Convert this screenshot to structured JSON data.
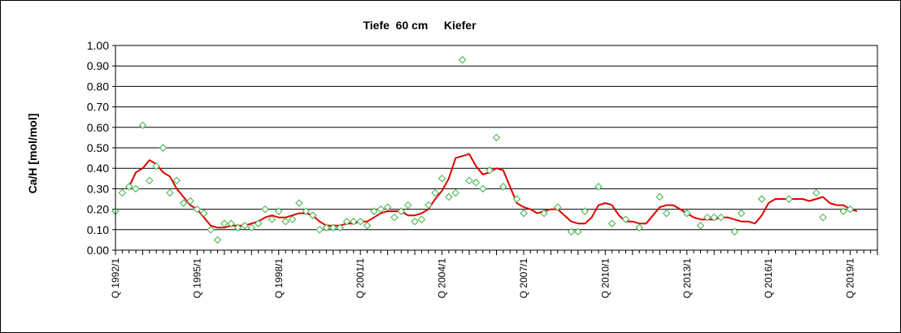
{
  "chart_data": {
    "type": "line",
    "title": "Tiefe  60 cm     Kiefer",
    "ylabel": "Ca/H [mol/mol]",
    "xlabel": "",
    "ylim": [
      0,
      1
    ],
    "yticks": [
      "0.00",
      "0.10",
      "0.20",
      "0.30",
      "0.40",
      "0.50",
      "0.60",
      "0.70",
      "0.80",
      "0.90",
      "1.00"
    ],
    "xlim": [
      1992.0,
      2020.0
    ],
    "xticks": [
      {
        "x": 1992.0,
        "label": "Q 1992/1"
      },
      {
        "x": 1995.0,
        "label": "Q 1995/1"
      },
      {
        "x": 1998.0,
        "label": "Q 1998/1"
      },
      {
        "x": 2001.0,
        "label": "Q 2001/1"
      },
      {
        "x": 2004.0,
        "label": "Q 2004/1"
      },
      {
        "x": 2007.0,
        "label": "Q 2007/1"
      },
      {
        "x": 2010.0,
        "label": "Q 2010/1"
      },
      {
        "x": 2013.0,
        "label": "Q 2013/1"
      },
      {
        "x": 2016.0,
        "label": "Q 2016/1"
      },
      {
        "x": 2019.0,
        "label": "Q 2019/1"
      }
    ],
    "grid": "horizontal",
    "series": [
      {
        "kind": "scatter",
        "marker": "diamond",
        "color": "#3cb043",
        "points": [
          [
            1992.0,
            0.19
          ],
          [
            1992.25,
            0.28
          ],
          [
            1992.5,
            0.31
          ],
          [
            1992.75,
            0.3
          ],
          [
            1993.0,
            0.61
          ],
          [
            1993.25,
            0.34
          ],
          [
            1993.5,
            0.41
          ],
          [
            1993.75,
            0.5
          ],
          [
            1994.0,
            0.28
          ],
          [
            1994.25,
            0.34
          ],
          [
            1994.5,
            0.23
          ],
          [
            1994.75,
            0.24
          ],
          [
            1995.0,
            0.2
          ],
          [
            1995.25,
            0.18
          ],
          [
            1995.5,
            0.1
          ],
          [
            1995.75,
            0.05
          ],
          [
            1996.0,
            0.13
          ],
          [
            1996.25,
            0.13
          ],
          [
            1996.5,
            0.11
          ],
          [
            1996.75,
            0.12
          ],
          [
            1997.0,
            0.11
          ],
          [
            1997.25,
            0.13
          ],
          [
            1997.5,
            0.2
          ],
          [
            1997.75,
            0.15
          ],
          [
            1998.0,
            0.19
          ],
          [
            1998.25,
            0.14
          ],
          [
            1998.5,
            0.15
          ],
          [
            1998.75,
            0.23
          ],
          [
            1999.0,
            0.19
          ],
          [
            1999.25,
            0.17
          ],
          [
            1999.5,
            0.1
          ],
          [
            1999.75,
            0.11
          ],
          [
            2000.0,
            0.11
          ],
          [
            2000.25,
            0.11
          ],
          [
            2000.5,
            0.14
          ],
          [
            2000.75,
            0.14
          ],
          [
            2001.0,
            0.14
          ],
          [
            2001.25,
            0.12
          ],
          [
            2001.5,
            0.19
          ],
          [
            2001.75,
            0.2
          ],
          [
            2002.0,
            0.21
          ],
          [
            2002.25,
            0.16
          ],
          [
            2002.5,
            0.19
          ],
          [
            2002.75,
            0.22
          ],
          [
            2003.0,
            0.14
          ],
          [
            2003.25,
            0.15
          ],
          [
            2003.5,
            0.22
          ],
          [
            2003.75,
            0.28
          ],
          [
            2004.0,
            0.35
          ],
          [
            2004.25,
            0.26
          ],
          [
            2004.5,
            0.28
          ],
          [
            2004.75,
            0.93
          ],
          [
            2005.0,
            0.34
          ],
          [
            2005.25,
            0.33
          ],
          [
            2005.5,
            0.3
          ],
          [
            2005.75,
            0.39
          ],
          [
            2006.0,
            0.55
          ],
          [
            2006.25,
            0.31
          ],
          [
            2006.75,
            0.25
          ],
          [
            2007.0,
            0.18
          ],
          [
            2007.75,
            0.18
          ],
          [
            2008.25,
            0.21
          ],
          [
            2008.75,
            0.09
          ],
          [
            2009.0,
            0.09
          ],
          [
            2009.25,
            0.19
          ],
          [
            2009.75,
            0.31
          ],
          [
            2010.25,
            0.13
          ],
          [
            2010.75,
            0.15
          ],
          [
            2011.25,
            0.11
          ],
          [
            2012.0,
            0.26
          ],
          [
            2012.25,
            0.18
          ],
          [
            2013.0,
            0.18
          ],
          [
            2013.5,
            0.12
          ],
          [
            2013.75,
            0.16
          ],
          [
            2014.0,
            0.16
          ],
          [
            2014.25,
            0.16
          ],
          [
            2014.75,
            0.09
          ],
          [
            2015.0,
            0.18
          ],
          [
            2015.75,
            0.25
          ],
          [
            2016.75,
            0.25
          ],
          [
            2017.75,
            0.28
          ],
          [
            2018.0,
            0.16
          ],
          [
            2018.75,
            0.19
          ],
          [
            2019.0,
            0.2
          ]
        ]
      },
      {
        "kind": "line",
        "color": "#e00000",
        "points": [
          [
            1992.5,
            0.31
          ],
          [
            1992.75,
            0.38
          ],
          [
            1993.0,
            0.4
          ],
          [
            1993.25,
            0.44
          ],
          [
            1993.5,
            0.42
          ],
          [
            1993.75,
            0.38
          ],
          [
            1994.0,
            0.36
          ],
          [
            1994.25,
            0.3
          ],
          [
            1994.5,
            0.26
          ],
          [
            1994.75,
            0.22
          ],
          [
            1995.0,
            0.2
          ],
          [
            1995.25,
            0.16
          ],
          [
            1995.5,
            0.12
          ],
          [
            1995.75,
            0.11
          ],
          [
            1996.0,
            0.11
          ],
          [
            1996.25,
            0.12
          ],
          [
            1996.5,
            0.12
          ],
          [
            1996.75,
            0.12
          ],
          [
            1997.0,
            0.13
          ],
          [
            1997.25,
            0.14
          ],
          [
            1997.5,
            0.16
          ],
          [
            1997.75,
            0.17
          ],
          [
            1998.0,
            0.16
          ],
          [
            1998.25,
            0.16
          ],
          [
            1998.5,
            0.17
          ],
          [
            1998.75,
            0.18
          ],
          [
            1999.0,
            0.18
          ],
          [
            1999.25,
            0.17
          ],
          [
            1999.5,
            0.14
          ],
          [
            1999.75,
            0.12
          ],
          [
            2000.0,
            0.12
          ],
          [
            2000.25,
            0.12
          ],
          [
            2000.5,
            0.13
          ],
          [
            2000.75,
            0.13
          ],
          [
            2001.0,
            0.14
          ],
          [
            2001.25,
            0.14
          ],
          [
            2001.5,
            0.16
          ],
          [
            2001.75,
            0.18
          ],
          [
            2002.0,
            0.19
          ],
          [
            2002.25,
            0.19
          ],
          [
            2002.5,
            0.19
          ],
          [
            2002.75,
            0.17
          ],
          [
            2003.0,
            0.17
          ],
          [
            2003.25,
            0.18
          ],
          [
            2003.5,
            0.2
          ],
          [
            2003.75,
            0.25
          ],
          [
            2004.0,
            0.29
          ],
          [
            2004.25,
            0.35
          ],
          [
            2004.5,
            0.45
          ],
          [
            2004.75,
            0.46
          ],
          [
            2005.0,
            0.47
          ],
          [
            2005.25,
            0.41
          ],
          [
            2005.5,
            0.37
          ],
          [
            2005.75,
            0.38
          ],
          [
            2006.0,
            0.4
          ],
          [
            2006.25,
            0.39
          ],
          [
            2006.5,
            0.31
          ],
          [
            2006.75,
            0.23
          ],
          [
            2007.0,
            0.21
          ],
          [
            2007.25,
            0.2
          ],
          [
            2007.5,
            0.18
          ],
          [
            2007.75,
            0.19
          ],
          [
            2008.0,
            0.2
          ],
          [
            2008.25,
            0.2
          ],
          [
            2008.5,
            0.17
          ],
          [
            2008.75,
            0.14
          ],
          [
            2009.0,
            0.13
          ],
          [
            2009.25,
            0.13
          ],
          [
            2009.5,
            0.16
          ],
          [
            2009.75,
            0.22
          ],
          [
            2010.0,
            0.23
          ],
          [
            2010.25,
            0.22
          ],
          [
            2010.5,
            0.17
          ],
          [
            2010.75,
            0.14
          ],
          [
            2011.0,
            0.14
          ],
          [
            2011.25,
            0.13
          ],
          [
            2011.5,
            0.13
          ],
          [
            2011.75,
            0.17
          ],
          [
            2012.0,
            0.21
          ],
          [
            2012.25,
            0.22
          ],
          [
            2012.5,
            0.22
          ],
          [
            2012.75,
            0.2
          ],
          [
            2013.0,
            0.18
          ],
          [
            2013.25,
            0.16
          ],
          [
            2013.5,
            0.15
          ],
          [
            2013.75,
            0.15
          ],
          [
            2014.0,
            0.15
          ],
          [
            2014.25,
            0.16
          ],
          [
            2014.5,
            0.16
          ],
          [
            2014.75,
            0.15
          ],
          [
            2015.0,
            0.14
          ],
          [
            2015.25,
            0.14
          ],
          [
            2015.5,
            0.13
          ],
          [
            2015.75,
            0.17
          ],
          [
            2016.0,
            0.23
          ],
          [
            2016.25,
            0.25
          ],
          [
            2016.5,
            0.25
          ],
          [
            2016.75,
            0.25
          ],
          [
            2017.0,
            0.25
          ],
          [
            2017.25,
            0.25
          ],
          [
            2017.5,
            0.24
          ],
          [
            2017.75,
            0.25
          ],
          [
            2018.0,
            0.26
          ],
          [
            2018.25,
            0.23
          ],
          [
            2018.5,
            0.22
          ],
          [
            2018.75,
            0.22
          ],
          [
            2019.0,
            0.2
          ],
          [
            2019.25,
            0.19
          ]
        ]
      }
    ]
  }
}
